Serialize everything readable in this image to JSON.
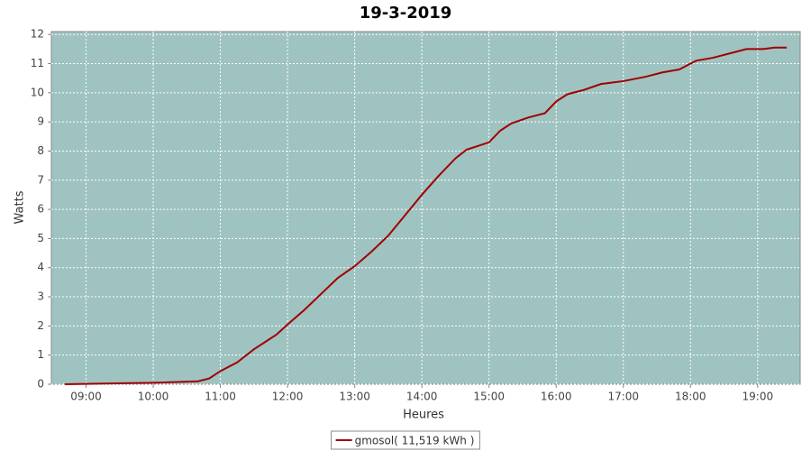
{
  "chart_data": {
    "type": "line",
    "title": "19-3-2019",
    "x_label": "Heures",
    "y_label": "Watts",
    "x": [
      "08:41",
      "09:10",
      "10:00",
      "10:40",
      "10:50",
      "11:00",
      "11:15",
      "11:30",
      "11:40",
      "11:50",
      "12:00",
      "12:15",
      "12:30",
      "12:45",
      "13:00",
      "13:15",
      "13:30",
      "13:45",
      "14:00",
      "14:15",
      "14:30",
      "14:40",
      "15:00",
      "15:10",
      "15:20",
      "15:35",
      "15:50",
      "16:00",
      "16:10",
      "16:25",
      "16:40",
      "17:00",
      "17:20",
      "17:35",
      "17:50",
      "18:05",
      "18:20",
      "18:35",
      "18:50",
      "19:05",
      "19:15",
      "19:26"
    ],
    "series": [
      {
        "name": "gmosol( 11,519 kWh )",
        "color": "#a00000",
        "values": [
          0,
          0.02,
          0.05,
          0.1,
          0.2,
          0.45,
          0.75,
          1.2,
          1.45,
          1.7,
          2.05,
          2.55,
          3.1,
          3.65,
          4.05,
          4.55,
          5.1,
          5.8,
          6.5,
          7.15,
          7.75,
          8.05,
          8.3,
          8.7,
          8.95,
          9.15,
          9.3,
          9.7,
          9.95,
          10.1,
          10.3,
          10.4,
          10.55,
          10.7,
          10.8,
          11.1,
          11.2,
          11.35,
          11.5,
          11.5,
          11.55,
          11.55
        ]
      }
    ],
    "xlim": [
      "08:29",
      "19:38"
    ],
    "xticks": [
      "09:00",
      "10:00",
      "11:00",
      "12:00",
      "13:00",
      "14:00",
      "15:00",
      "16:00",
      "17:00",
      "18:00",
      "19:00"
    ],
    "ylim": [
      0,
      12.1
    ],
    "yticks": [
      0,
      1,
      2,
      3,
      4,
      5,
      6,
      7,
      8,
      9,
      10,
      11,
      12
    ],
    "grid": true,
    "legend": "bottom"
  }
}
